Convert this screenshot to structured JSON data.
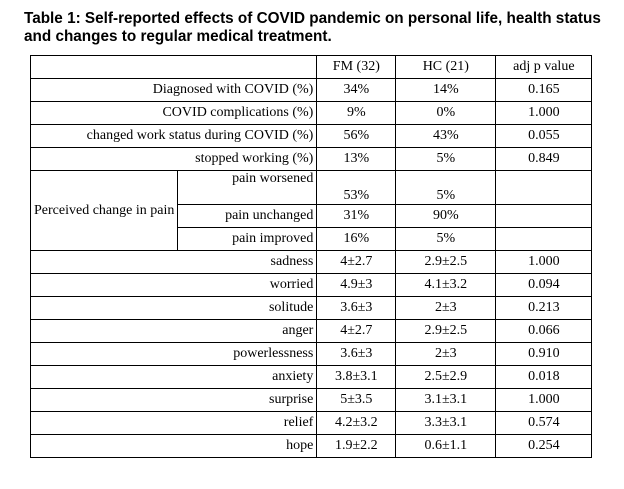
{
  "caption": "Table 1: Self-reported effects of COVID pandemic on personal life, health status and changes to regular medical treatment.",
  "header": {
    "col_fm": "FM (32)",
    "col_hc": "HC (21)",
    "col_p": "adj p value"
  },
  "rows_top": [
    {
      "label": "Diagnosed with COVID (%)",
      "fm": "34%",
      "hc": "14%",
      "p": "0.165"
    },
    {
      "label": "COVID complications (%)",
      "fm": "9%",
      "hc": "0%",
      "p": "1.000"
    },
    {
      "label": "changed work status during COVID (%)",
      "fm": "56%",
      "hc": "43%",
      "p": "0.055"
    },
    {
      "label": "stopped working (%)",
      "fm": "13%",
      "hc": "5%",
      "p": "0.849"
    }
  ],
  "pain_group": {
    "label": "Perceived change in pain",
    "rows": [
      {
        "label": "pain worsened",
        "fm": "53%",
        "hc": "5%",
        "p": ""
      },
      {
        "label": "pain unchanged",
        "fm": "31%",
        "hc": "90%",
        "p": ""
      },
      {
        "label": "pain improved",
        "fm": "16%",
        "hc": "5%",
        "p": ""
      }
    ]
  },
  "rows_emotion": [
    {
      "label": "sadness",
      "fm": "4±2.7",
      "hc": "2.9±2.5",
      "p": "1.000"
    },
    {
      "label": "worried",
      "fm": "4.9±3",
      "hc": "4.1±3.2",
      "p": "0.094"
    },
    {
      "label": "solitude",
      "fm": "3.6±3",
      "hc": "2±3",
      "p": "0.213"
    },
    {
      "label": "anger",
      "fm": "4±2.7",
      "hc": "2.9±2.5",
      "p": "0.066"
    },
    {
      "label": "powerlessness",
      "fm": "3.6±3",
      "hc": "2±3",
      "p": "0.910"
    },
    {
      "label": "anxiety",
      "fm": "3.8±3.1",
      "hc": "2.5±2.9",
      "p": "0.018"
    },
    {
      "label": "surprise",
      "fm": "5±3.5",
      "hc": "3.1±3.1",
      "p": "1.000"
    },
    {
      "label": "relief",
      "fm": "4.2±3.2",
      "hc": "3.3±3.1",
      "p": "0.574"
    },
    {
      "label": "hope",
      "fm": "1.9±2.2",
      "hc": "0.6±1.1",
      "p": "0.254"
    }
  ]
}
